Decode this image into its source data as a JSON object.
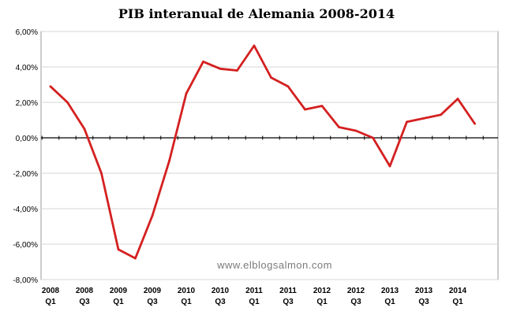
{
  "chart_data": {
    "type": "line",
    "title": "PIB interanual de Alemania 2008-2014",
    "watermark": "www.elblogsalmon.com",
    "xlabel": "",
    "ylabel": "",
    "ylim": [
      -8,
      6
    ],
    "y_ticks": [
      {
        "value": 6,
        "label": "6,00%"
      },
      {
        "value": 4,
        "label": "4,00%"
      },
      {
        "value": 2,
        "label": "2,00%"
      },
      {
        "value": 0,
        "label": "0,00%"
      },
      {
        "value": -2,
        "label": "-2,00%"
      },
      {
        "value": -4,
        "label": "-4,00%"
      },
      {
        "value": -6,
        "label": "-6,00%"
      },
      {
        "value": -8,
        "label": "-8,00%"
      }
    ],
    "x_tick_labels": [
      {
        "index": 0,
        "year": "2008",
        "quarter": "Q1"
      },
      {
        "index": 2,
        "year": "2008",
        "quarter": "Q3"
      },
      {
        "index": 4,
        "year": "2009",
        "quarter": "Q1"
      },
      {
        "index": 6,
        "year": "2009",
        "quarter": "Q3"
      },
      {
        "index": 8,
        "year": "2010",
        "quarter": "Q1"
      },
      {
        "index": 10,
        "year": "2010",
        "quarter": "Q3"
      },
      {
        "index": 12,
        "year": "2011",
        "quarter": "Q1"
      },
      {
        "index": 14,
        "year": "2011",
        "quarter": "Q3"
      },
      {
        "index": 16,
        "year": "2012",
        "quarter": "Q1"
      },
      {
        "index": 18,
        "year": "2012",
        "quarter": "Q3"
      },
      {
        "index": 20,
        "year": "2013",
        "quarter": "Q1"
      },
      {
        "index": 22,
        "year": "2013",
        "quarter": "Q3"
      },
      {
        "index": 24,
        "year": "2014",
        "quarter": "Q1"
      }
    ],
    "categories": [
      "2008 Q1",
      "2008 Q2",
      "2008 Q3",
      "2008 Q4",
      "2009 Q1",
      "2009 Q2",
      "2009 Q3",
      "2009 Q4",
      "2010 Q1",
      "2010 Q2",
      "2010 Q3",
      "2010 Q4",
      "2011 Q1",
      "2011 Q2",
      "2011 Q3",
      "2011 Q4",
      "2012 Q1",
      "2012 Q2",
      "2012 Q3",
      "2012 Q4",
      "2013 Q1",
      "2013 Q2",
      "2013 Q3",
      "2013 Q4",
      "2014 Q1",
      "2014 Q2"
    ],
    "series": [
      {
        "color": "#d42020",
        "values": [
          2.9,
          2.0,
          0.5,
          -2.0,
          -6.3,
          -6.8,
          -4.4,
          -1.3,
          2.5,
          4.3,
          3.9,
          3.8,
          5.2,
          3.4,
          2.9,
          1.6,
          1.8,
          0.6,
          0.4,
          0.0,
          -1.6,
          0.9,
          1.1,
          1.3,
          2.2,
          0.8
        ]
      }
    ],
    "grid": "horizontal",
    "zero_line": "dotted black",
    "legend": "none"
  }
}
